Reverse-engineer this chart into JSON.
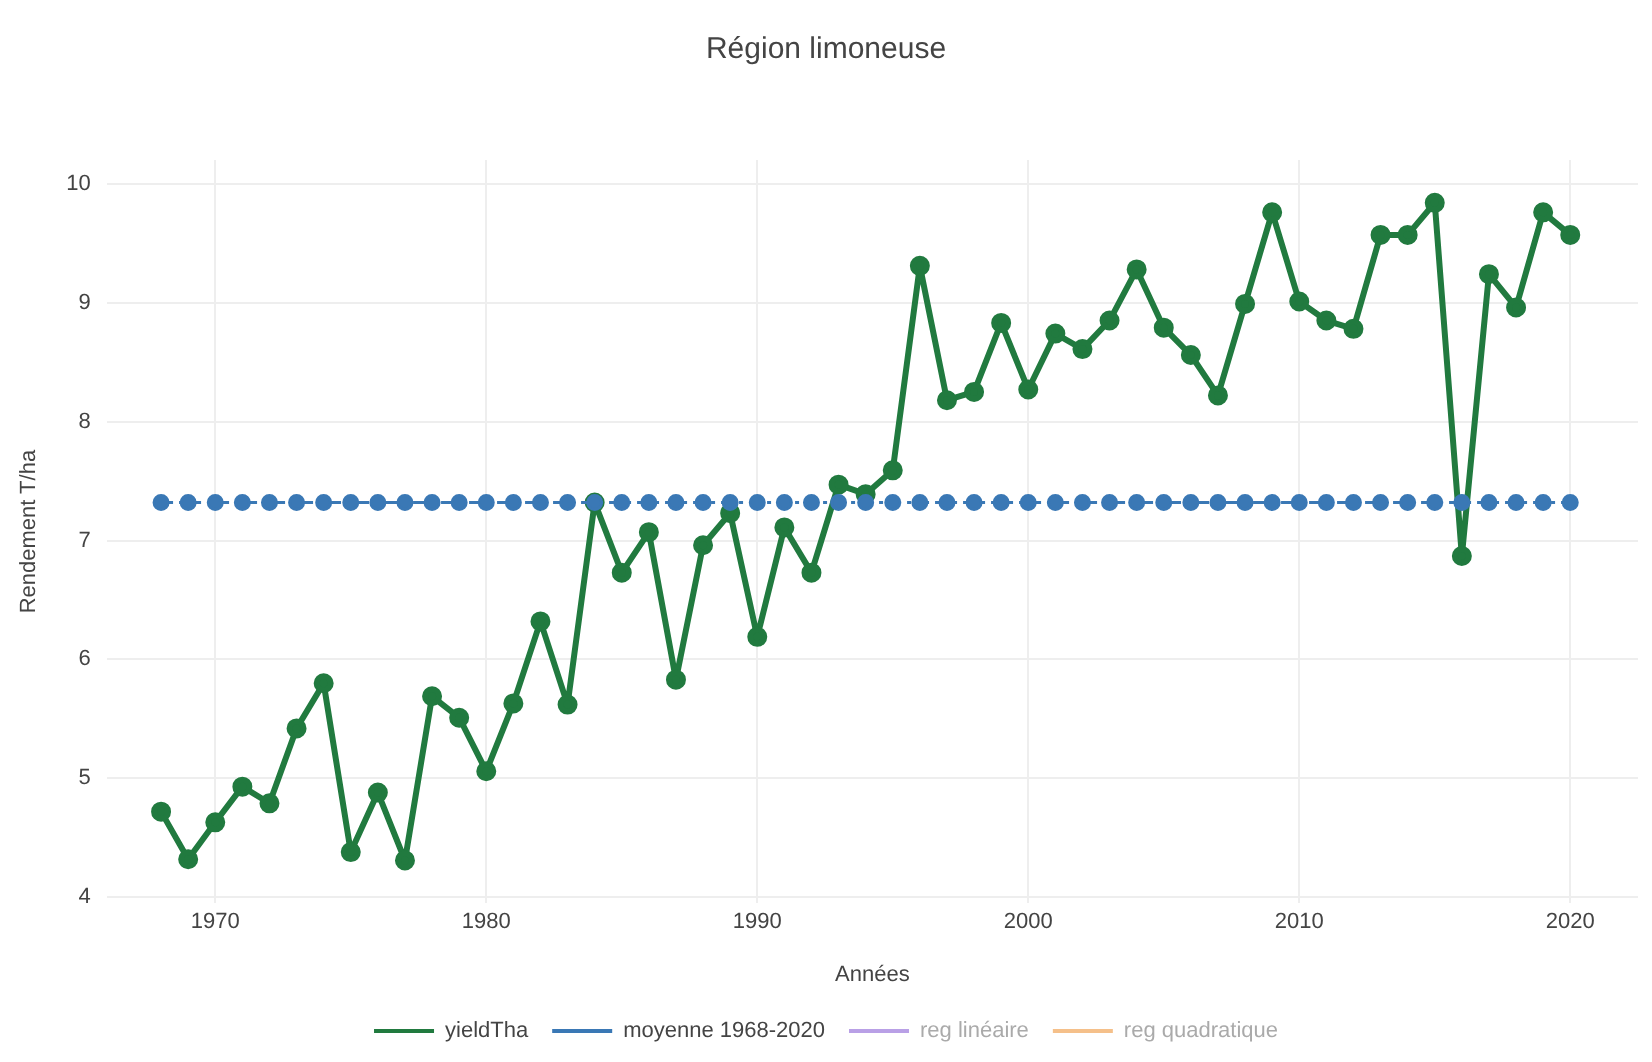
{
  "chart_data": {
    "type": "line",
    "title": "Région limoneuse",
    "xlabel": "Années",
    "ylabel": "Rendement T/ha",
    "x": [
      1968,
      1969,
      1970,
      1971,
      1972,
      1973,
      1974,
      1975,
      1976,
      1977,
      1978,
      1979,
      1980,
      1981,
      1982,
      1983,
      1984,
      1985,
      1986,
      1987,
      1988,
      1989,
      1990,
      1991,
      1992,
      1993,
      1994,
      1995,
      1996,
      1997,
      1998,
      1999,
      2000,
      2001,
      2002,
      2003,
      2004,
      2005,
      2006,
      2007,
      2008,
      2009,
      2010,
      2011,
      2012,
      2013,
      2014,
      2015,
      2016,
      2017,
      2018,
      2019,
      2020
    ],
    "series": [
      {
        "name": "yieldTha",
        "color": "#217a3f",
        "line_style": "solid",
        "values": [
          4.72,
          4.32,
          4.63,
          4.93,
          4.79,
          5.42,
          5.8,
          4.38,
          4.88,
          4.31,
          5.69,
          5.51,
          5.06,
          5.63,
          6.32,
          5.62,
          7.32,
          6.73,
          7.07,
          5.83,
          6.96,
          7.23,
          6.19,
          7.11,
          6.73,
          7.47,
          7.39,
          7.59,
          9.31,
          8.18,
          8.25,
          8.83,
          8.27,
          8.74,
          8.61,
          8.85,
          9.28,
          8.79,
          8.56,
          8.22,
          8.99,
          9.76,
          9.01,
          8.85,
          8.78,
          9.57,
          9.57,
          9.84,
          6.87,
          9.24,
          8.96,
          9.76,
          9.57
        ]
      },
      {
        "name": "moyenne 1968-2020",
        "color": "#3a78b5",
        "line_style": "dashed",
        "values": [
          7.32,
          7.32,
          7.32,
          7.32,
          7.32,
          7.32,
          7.32,
          7.32,
          7.32,
          7.32,
          7.32,
          7.32,
          7.32,
          7.32,
          7.32,
          7.32,
          7.32,
          7.32,
          7.32,
          7.32,
          7.32,
          7.32,
          7.32,
          7.32,
          7.32,
          7.32,
          7.32,
          7.32,
          7.32,
          7.32,
          7.32,
          7.32,
          7.32,
          7.32,
          7.32,
          7.32,
          7.32,
          7.32,
          7.32,
          7.32,
          7.32,
          7.32,
          7.32,
          7.32,
          7.32,
          7.32,
          7.32,
          7.32,
          7.32,
          7.32,
          7.32,
          7.32,
          7.32
        ]
      },
      {
        "name": "reg linéaire",
        "color": "#b9a0e6",
        "line_style": "dashed",
        "values": [
          null,
          null,
          null,
          null,
          null,
          null,
          null,
          null,
          null,
          null,
          null,
          null,
          null,
          null,
          null,
          null,
          null,
          null,
          null,
          null,
          null,
          null,
          null,
          null,
          null,
          null,
          null,
          null,
          null,
          null,
          null,
          null,
          null,
          null,
          null,
          null,
          null,
          null,
          null,
          null,
          null,
          null,
          null,
          null,
          null,
          null,
          null,
          null,
          null,
          null,
          null,
          null,
          null
        ]
      },
      {
        "name": "reg quadratique",
        "color": "#f5c08a",
        "line_style": "dashed",
        "values": [
          null,
          null,
          null,
          null,
          null,
          null,
          null,
          null,
          null,
          null,
          null,
          null,
          null,
          null,
          null,
          null,
          null,
          null,
          null,
          null,
          null,
          null,
          null,
          null,
          null,
          null,
          null,
          null,
          null,
          null,
          null,
          null,
          null,
          null,
          null,
          null,
          null,
          null,
          null,
          null,
          null,
          null,
          null,
          null,
          null,
          null,
          null,
          null,
          null,
          null,
          null,
          null,
          null
        ]
      }
    ],
    "xlim": [
      1966,
      2022.5
    ],
    "xticks": [
      1970,
      1980,
      1990,
      2000,
      2010,
      2020
    ],
    "ylim": [
      3.95,
      10.2
    ],
    "yticks": [
      4,
      5,
      6,
      7,
      8,
      9,
      10
    ],
    "grid": true,
    "legend": "bottom",
    "marker": "circle"
  }
}
